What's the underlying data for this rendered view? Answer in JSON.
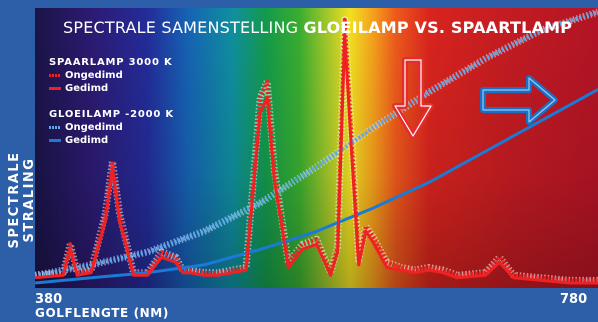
{
  "chart_data": {
    "type": "line",
    "title_regular": "SPECTRALE SAMENSTELLING ",
    "title_bold": "GLOEILAMP VS. SPAARTLAMP",
    "xlabel": "GOLFLENGTE (NM)",
    "ylabel": "SPECTRALE STRALING",
    "xlim": [
      380,
      780
    ],
    "x_tick_labels": [
      "380",
      "780"
    ],
    "legend_groups": [
      {
        "title": "SPAARLAMP 3000 K",
        "color": "#ee2222",
        "entries": [
          "Ongedimd",
          "Gedimd"
        ]
      },
      {
        "title": "GLOEILAMP -2000 K",
        "color": "#1a7ad6",
        "entries": [
          "Ongedimd",
          "Gedimd"
        ]
      }
    ],
    "series": [
      {
        "name": "Ongedimd",
        "group": "SPAARLAMP 3000 K",
        "style": "dotted",
        "color": "#ee2222",
        "x": [
          380,
          400,
          405,
          410,
          420,
          430,
          435,
          440,
          450,
          460,
          470,
          480,
          485,
          490,
          500,
          510,
          530,
          540,
          545,
          550,
          560,
          570,
          580,
          590,
          595,
          600,
          605,
          610,
          615,
          620,
          630,
          640,
          650,
          660,
          670,
          680,
          700,
          710,
          720,
          740,
          760,
          780
        ],
        "y": [
          3,
          4,
          15,
          4,
          5,
          27,
          47,
          27,
          4,
          4,
          12,
          10,
          5,
          5,
          4,
          4,
          6,
          72,
          78,
          44,
          8,
          15,
          17,
          4,
          14,
          102,
          55,
          9,
          22,
          18,
          8,
          6,
          5,
          6,
          5,
          3,
          4,
          10,
          3,
          2,
          1,
          1
        ]
      },
      {
        "name": "Gedimd",
        "group": "SPAARLAMP 3000 K",
        "style": "solid",
        "color": "#ee2222",
        "x": [
          380,
          400,
          405,
          410,
          420,
          430,
          435,
          440,
          450,
          460,
          470,
          480,
          485,
          490,
          500,
          510,
          530,
          540,
          545,
          550,
          560,
          570,
          580,
          590,
          595,
          600,
          605,
          610,
          615,
          620,
          630,
          640,
          650,
          660,
          670,
          680,
          700,
          710,
          720,
          740,
          760,
          780
        ],
        "y": [
          2,
          3,
          13,
          3,
          4,
          24,
          44,
          24,
          3,
          3,
          10,
          8,
          4,
          4,
          3,
          3,
          5,
          66,
          72,
          40,
          6,
          13,
          15,
          3,
          12,
          96,
          50,
          7,
          20,
          16,
          6,
          5,
          4,
          5,
          4,
          2,
          3,
          8,
          2,
          1,
          0,
          0
        ]
      },
      {
        "name": "Ongedimd",
        "group": "GLOEILAMP -2000 K",
        "style": "dotted",
        "color": "#1a7ad6",
        "x": [
          380,
          420,
          460,
          500,
          540,
          580,
          620,
          660,
          700,
          740,
          780
        ],
        "y": [
          3,
          7,
          12,
          20,
          31,
          45,
          60,
          74,
          87,
          98,
          105
        ]
      },
      {
        "name": "Gedimd",
        "group": "GLOEILAMP -2000 K",
        "style": "solid",
        "color": "#1a7ad6",
        "x": [
          380,
          420,
          460,
          500,
          540,
          580,
          620,
          660,
          700,
          740,
          780
        ],
        "y": [
          0,
          2,
          4,
          7,
          13,
          20,
          29,
          39,
          51,
          63,
          75
        ]
      }
    ],
    "annotations": [
      {
        "type": "arrow-down",
        "color": "#e62b2b"
      },
      {
        "type": "arrow-right",
        "color": "#1a6fc7"
      }
    ],
    "background": "visible-spectrum-gradient"
  }
}
